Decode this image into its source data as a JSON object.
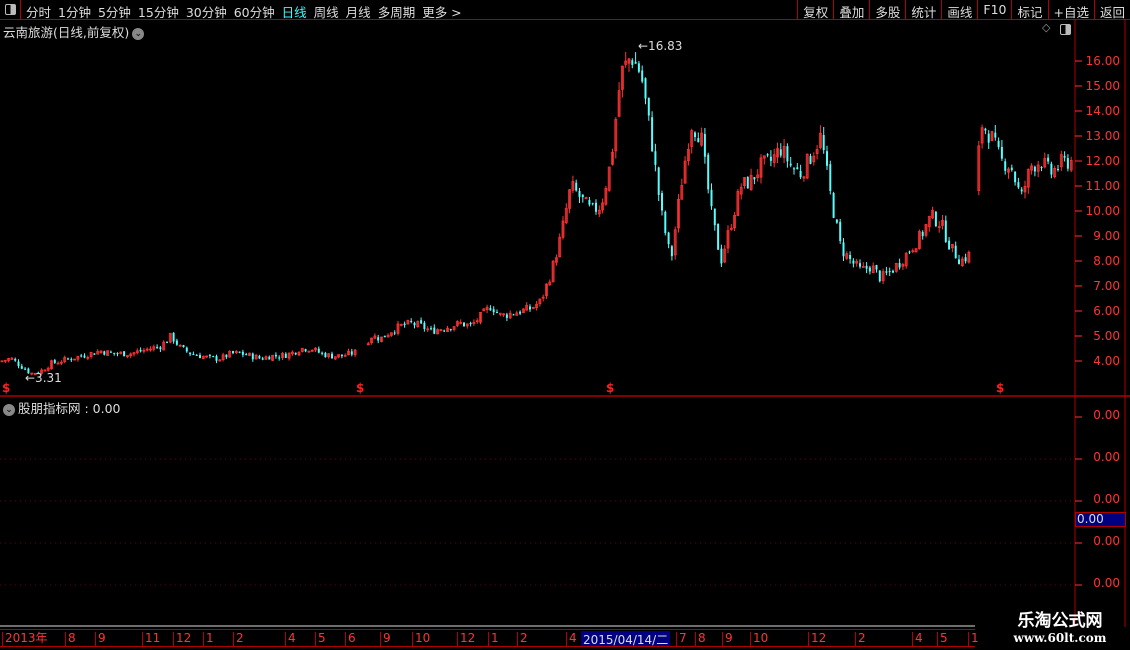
{
  "toolbar": {
    "periods": [
      "分时",
      "1分钟",
      "5分钟",
      "15分钟",
      "30分钟",
      "60分钟",
      "日线",
      "周线",
      "月线",
      "多周期",
      "更多 >"
    ],
    "active_period": "日线",
    "buttons": [
      "复权",
      "叠加",
      "多股",
      "统计",
      "画线",
      "F10",
      "标记",
      "+自选",
      "返回"
    ]
  },
  "main_chart": {
    "title": "云南旅游(日线,前复权)",
    "high_label": "16.83",
    "low_label": "3.31",
    "colors": {
      "up": "#ff3232",
      "down": "#54ffff",
      "axis": "#ff3333",
      "border": "#b00000"
    }
  },
  "chart_data": {
    "type": "candlestick",
    "y_ticks": [
      "16.00",
      "15.00",
      "14.00",
      "13.00",
      "12.00",
      "11.00",
      "10.00",
      "9.00",
      "8.00",
      "7.00",
      "6.00",
      "5.00",
      "4.00"
    ],
    "ylim": [
      3,
      17
    ],
    "high": 16.83,
    "low": 3.31,
    "approx_close": [
      4.0,
      4.1,
      3.8,
      3.5,
      3.6,
      3.9,
      4.0,
      4.1,
      4.2,
      4.3,
      4.4,
      4.3,
      4.3,
      4.3,
      4.4,
      4.5,
      4.6,
      5.0,
      4.5,
      4.3,
      4.2,
      4.1,
      4.1,
      4.3,
      4.3,
      4.2,
      4.1,
      4.2,
      4.2,
      4.3,
      4.5,
      4.5,
      4.3,
      4.2,
      4.2,
      4.3,
      4.4,
      5.0,
      4.9,
      5.2,
      5.4,
      5.5,
      5.4,
      5.2,
      5.3,
      5.4,
      5.5,
      5.4,
      5.8,
      6.2,
      5.8,
      5.9,
      6.0,
      6.1,
      6.4,
      7.5,
      9.0,
      11.0,
      10.5,
      10.0,
      10.2,
      12.0,
      15.5,
      16.2,
      15.5,
      13.0,
      10.0,
      8.0,
      11.0,
      13.5,
      13.0,
      10.0,
      8.0,
      9.5,
      11.0,
      11.2,
      11.8,
      12.0,
      12.5,
      11.8,
      11.5,
      12.2,
      13.0,
      10.5,
      8.5,
      8.0,
      7.6,
      7.8,
      7.3,
      7.6,
      8.0,
      8.5,
      9.0,
      9.8,
      9.5,
      8.5,
      8.0,
      8.3,
      13.5,
      13.0,
      12.0,
      11.8,
      10.5,
      11.8,
      12.0,
      11.5,
      11.9,
      12.0
    ],
    "x_ticks": [
      "2013年",
      "8",
      "9",
      "11",
      "12",
      "1",
      "2",
      "4",
      "5",
      "6",
      "9",
      "10",
      "12",
      "1",
      "2",
      "4",
      "7",
      "8",
      "9",
      "10",
      "12",
      "2",
      "4",
      "5",
      "1"
    ]
  },
  "indicator": {
    "title": "股朋指标网 : 0.00",
    "y_ticks": [
      "0.00",
      "0.00",
      "0.00",
      "0.00",
      "0.00"
    ],
    "cursor_value": "0.00"
  },
  "date_bar": {
    "cursor_date": "2015/04/14/二"
  },
  "watermark": {
    "name": "乐淘公式网",
    "url": "www.60lt.com"
  }
}
